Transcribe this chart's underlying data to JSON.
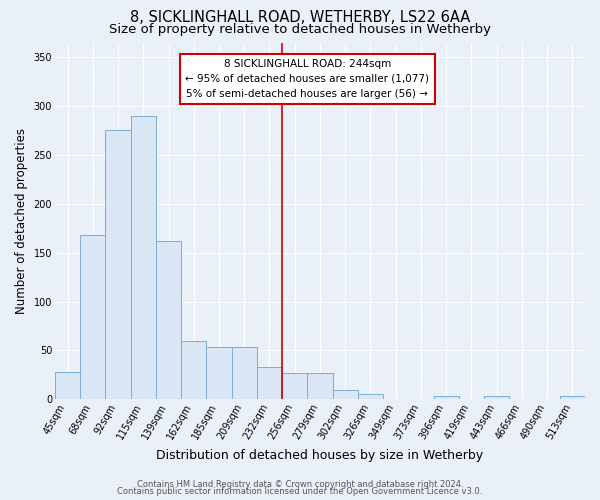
{
  "title1": "8, SICKLINGHALL ROAD, WETHERBY, LS22 6AA",
  "title2": "Size of property relative to detached houses in Wetherby",
  "xlabel": "Distribution of detached houses by size in Wetherby",
  "ylabel": "Number of detached properties",
  "bin_labels": [
    "45sqm",
    "68sqm",
    "92sqm",
    "115sqm",
    "139sqm",
    "162sqm",
    "185sqm",
    "209sqm",
    "232sqm",
    "256sqm",
    "279sqm",
    "302sqm",
    "326sqm",
    "349sqm",
    "373sqm",
    "396sqm",
    "419sqm",
    "443sqm",
    "466sqm",
    "490sqm",
    "513sqm"
  ],
  "bar_heights": [
    28,
    168,
    275,
    290,
    162,
    60,
    54,
    54,
    33,
    27,
    27,
    10,
    5,
    0,
    0,
    3,
    0,
    3,
    0,
    0,
    3
  ],
  "bar_color": "#dae6f3",
  "bar_edge_color": "#7bafd4",
  "vline_x_index": 8.5,
  "vline_color": "#cc0000",
  "annotation_text": "8 SICKLINGHALL ROAD: 244sqm\n← 95% of detached houses are smaller (1,077)\n5% of semi-detached houses are larger (56) →",
  "annotation_box_color": "#ffffff",
  "annotation_box_edge_color": "#cc0000",
  "ylim": [
    0,
    365
  ],
  "yticks": [
    0,
    50,
    100,
    150,
    200,
    250,
    300,
    350
  ],
  "footer1": "Contains HM Land Registry data © Crown copyright and database right 2024.",
  "footer2": "Contains public sector information licensed under the Open Government Licence v3.0.",
  "bg_color": "#eaf0f8",
  "grid_color": "#ffffff",
  "title_fontsize": 10.5,
  "subtitle_fontsize": 9.5,
  "ylabel_fontsize": 8.5,
  "xlabel_fontsize": 9,
  "tick_fontsize": 7,
  "annot_fontsize": 7.5,
  "footer_fontsize": 6
}
